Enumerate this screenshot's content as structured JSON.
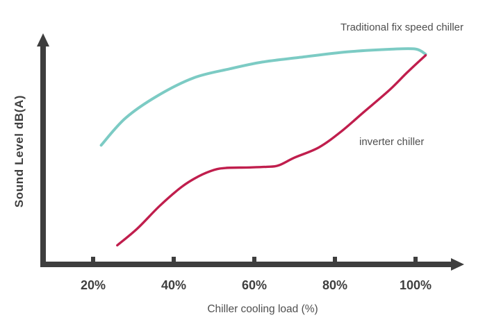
{
  "colors": {
    "background": "#ffffff",
    "axis": "#3e3e3e",
    "label_text": "#4f4f4f",
    "tick_text": "#3f3f3f",
    "traditional_curve": "#7ccbc4",
    "inverter_curve": "#c01e4d"
  },
  "chart_data": {
    "type": "line",
    "title": "",
    "xlabel": "Chiller cooling load (%)",
    "ylabel": "Sound Level dB(A)",
    "x_ticks": [
      "20%",
      "40%",
      "60%",
      "80%",
      "100%"
    ],
    "x_tick_values": [
      20,
      40,
      60,
      80,
      100
    ],
    "xlim": [
      8,
      112
    ],
    "ylim": [
      0,
      100
    ],
    "y_axis_note": "y axis has no numeric ticks; values are relative sound level (0-100 of drawn scale)",
    "grid": false,
    "legend_position": "inline-annotations",
    "series": [
      {
        "name": "Traditional fix speed chiller",
        "color": "#7ccbc4",
        "points": [
          [
            22,
            53
          ],
          [
            28,
            65
          ],
          [
            36,
            75
          ],
          [
            45,
            83
          ],
          [
            54,
            87
          ],
          [
            62,
            90
          ],
          [
            71,
            92
          ],
          [
            83,
            94.5
          ],
          [
            94,
            95.7
          ],
          [
            100,
            95.8
          ],
          [
            102.5,
            93.5
          ]
        ]
      },
      {
        "name": "inverter chiller",
        "color": "#c01e4d",
        "points": [
          [
            26,
            8.5
          ],
          [
            31,
            16
          ],
          [
            36.5,
            26
          ],
          [
            42,
            34.5
          ],
          [
            46,
            39
          ],
          [
            50,
            42
          ],
          [
            53,
            42.9
          ],
          [
            58,
            43.1
          ],
          [
            63,
            43.4
          ],
          [
            66,
            44
          ],
          [
            70,
            47.5
          ],
          [
            76,
            52
          ],
          [
            81.5,
            59
          ],
          [
            87,
            67.5
          ],
          [
            93.5,
            77.5
          ],
          [
            98,
            85.5
          ],
          [
            102.5,
            93
          ]
        ]
      }
    ],
    "annotations": [
      {
        "text": "Traditional fix speed chiller",
        "position": "top-right, above teal curve"
      },
      {
        "text": "inverter chiller",
        "position": "right of red curve mid-rise"
      }
    ]
  }
}
